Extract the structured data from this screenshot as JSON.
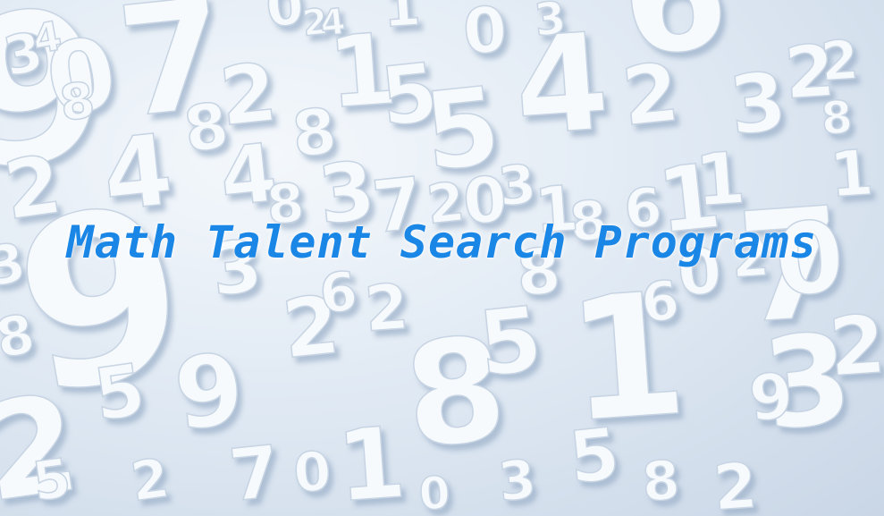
{
  "headline": {
    "text": "Math Talent Search Programs",
    "color": "#1a86e6"
  },
  "background": {
    "description_icon": "3d-numbers-pattern-icon",
    "base_color": "#dfe8f3",
    "digit_face_color": "#f7fafd",
    "digit_side_color": "#b9c9dc"
  }
}
